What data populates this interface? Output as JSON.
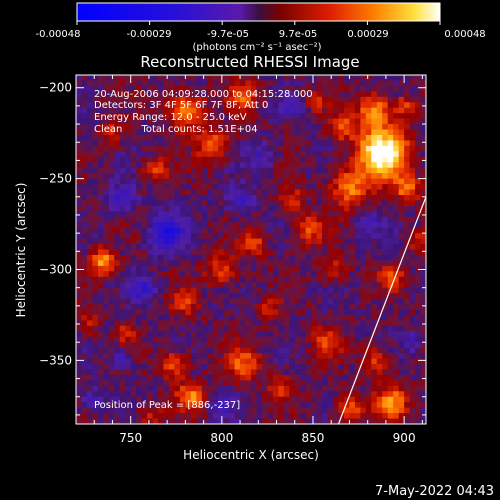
{
  "colorbar": {
    "ticks": [
      "-0.00048",
      "-0.00029",
      "-9.7e-05",
      "9.7e-05",
      "0.00029",
      "0.00048"
    ],
    "unit_label": "(photons cm⁻² s⁻¹ asec⁻²)"
  },
  "image_annotations": {
    "line1": "20-Aug-2006 04:09:28.000 to 04:15:28.000",
    "line2": "Detectors: 3F 4F 5F 6F 7F 8F, Att 0",
    "line3": "Energy Range: 12.0 - 25.0 keV",
    "line4": "Clean      Total counts: 1.51E+04",
    "peak": "Position of Peak = [886,-237]"
  },
  "footer": {
    "date": "7-May-2022 04:43"
  },
  "chart_data": {
    "type": "heatmap",
    "title": "Reconstructed RHESSI Image",
    "xlabel": "Heliocentric X (arcsec)",
    "ylabel": "Heliocentric Y (arcsec)",
    "xlim": [
      720,
      912
    ],
    "ylim": [
      -385,
      -193
    ],
    "x_ticks": [
      750,
      800,
      850,
      900
    ],
    "y_ticks": [
      -200,
      -250,
      -300,
      -350
    ],
    "colorbar_range": [
      -0.00048,
      0.00048
    ],
    "colormap": "red-temperature",
    "peak_position": [
      886,
      -237
    ],
    "limb_line": [
      [
        864,
        -385
      ],
      [
        912,
        -260
      ]
    ],
    "bright_sources": [
      {
        "x": 888,
        "y": -236,
        "intensity": 1.0,
        "radius": 14
      },
      {
        "x": 884,
        "y": -213,
        "intensity": 0.62,
        "radius": 9
      },
      {
        "x": 870,
        "y": -255,
        "intensity": 0.55,
        "radius": 10
      },
      {
        "x": 902,
        "y": -256,
        "intensity": 0.5,
        "radius": 7
      },
      {
        "x": 735,
        "y": -296,
        "intensity": 0.62,
        "radius": 7
      },
      {
        "x": 780,
        "y": -213,
        "intensity": 0.55,
        "radius": 10
      },
      {
        "x": 795,
        "y": -232,
        "intensity": 0.48,
        "radius": 9
      },
      {
        "x": 812,
        "y": -205,
        "intensity": 0.42,
        "radius": 8
      },
      {
        "x": 763,
        "y": -245,
        "intensity": 0.35,
        "radius": 7
      },
      {
        "x": 866,
        "y": -222,
        "intensity": 0.42,
        "radius": 7
      },
      {
        "x": 900,
        "y": -210,
        "intensity": 0.38,
        "radius": 6
      },
      {
        "x": 800,
        "y": -300,
        "intensity": 0.4,
        "radius": 9
      },
      {
        "x": 818,
        "y": -286,
        "intensity": 0.38,
        "radius": 7
      },
      {
        "x": 848,
        "y": -278,
        "intensity": 0.42,
        "radius": 8
      },
      {
        "x": 838,
        "y": -262,
        "intensity": 0.38,
        "radius": 7
      },
      {
        "x": 780,
        "y": -318,
        "intensity": 0.32,
        "radius": 7
      },
      {
        "x": 862,
        "y": -300,
        "intensity": 0.32,
        "radius": 7
      },
      {
        "x": 893,
        "y": -304,
        "intensity": 0.38,
        "radius": 7
      },
      {
        "x": 908,
        "y": -285,
        "intensity": 0.3,
        "radius": 6
      },
      {
        "x": 783,
        "y": -370,
        "intensity": 0.55,
        "radius": 8
      },
      {
        "x": 773,
        "y": -352,
        "intensity": 0.42,
        "radius": 8
      },
      {
        "x": 812,
        "y": -352,
        "intensity": 0.45,
        "radius": 9
      },
      {
        "x": 832,
        "y": -365,
        "intensity": 0.35,
        "radius": 7
      },
      {
        "x": 857,
        "y": -340,
        "intensity": 0.42,
        "radius": 8
      },
      {
        "x": 885,
        "y": -350,
        "intensity": 0.38,
        "radius": 8
      },
      {
        "x": 893,
        "y": -373,
        "intensity": 0.55,
        "radius": 9
      },
      {
        "x": 870,
        "y": -377,
        "intensity": 0.45,
        "radius": 8
      },
      {
        "x": 760,
        "y": -380,
        "intensity": 0.3,
        "radius": 6
      },
      {
        "x": 748,
        "y": -335,
        "intensity": 0.3,
        "radius": 6
      },
      {
        "x": 740,
        "y": -225,
        "intensity": 0.28,
        "radius": 7
      },
      {
        "x": 727,
        "y": -330,
        "intensity": 0.3,
        "radius": 6
      },
      {
        "x": 826,
        "y": -322,
        "intensity": 0.3,
        "radius": 6
      },
      {
        "x": 852,
        "y": -208,
        "intensity": 0.28,
        "radius": 6
      }
    ],
    "negative_regions": [
      {
        "x": 770,
        "y": -280,
        "depth": 0.55,
        "radius": 10
      },
      {
        "x": 745,
        "y": -262,
        "depth": 0.4,
        "radius": 8
      },
      {
        "x": 810,
        "y": -262,
        "depth": 0.35,
        "radius": 8
      },
      {
        "x": 822,
        "y": -238,
        "depth": 0.3,
        "radius": 8
      },
      {
        "x": 756,
        "y": -310,
        "depth": 0.4,
        "radius": 7
      },
      {
        "x": 745,
        "y": -350,
        "depth": 0.35,
        "radius": 6
      },
      {
        "x": 800,
        "y": -375,
        "depth": 0.3,
        "radius": 7
      },
      {
        "x": 880,
        "y": -275,
        "depth": 0.3,
        "radius": 7
      },
      {
        "x": 905,
        "y": -340,
        "depth": 0.25,
        "radius": 6
      },
      {
        "x": 838,
        "y": -210,
        "depth": 0.3,
        "radius": 6
      },
      {
        "x": 728,
        "y": -372,
        "depth": 0.35,
        "radius": 6
      }
    ]
  }
}
